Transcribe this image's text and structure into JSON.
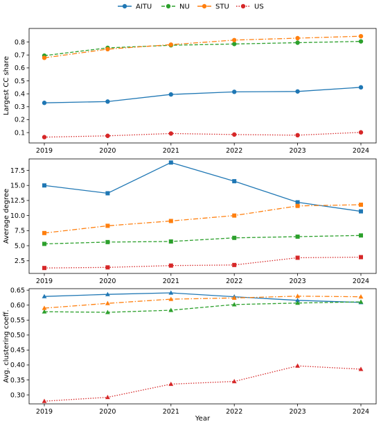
{
  "legend": {
    "placement": "top-center",
    "entries": [
      {
        "name": "AITU",
        "color": "#1f77b4",
        "dash": "solid"
      },
      {
        "name": "NU",
        "color": "#2ca02c",
        "dash": "dashed"
      },
      {
        "name": "STU",
        "color": "#ff7f0e",
        "dash": "dashdot"
      },
      {
        "name": "US",
        "color": "#d62728",
        "dash": "dotted"
      }
    ]
  },
  "chart_data": [
    {
      "type": "line",
      "ylabel": "Largest CC share",
      "xlabel": "",
      "marker": "circle",
      "x": [
        2019,
        2020,
        2021,
        2022,
        2023,
        2024
      ],
      "x_ticks": [
        "2019",
        "2020",
        "2021",
        "2022",
        "2023",
        "2024"
      ],
      "ylim": [
        0.02,
        0.905
      ],
      "y_ticks": [
        "0.1",
        "0.2",
        "0.3",
        "0.4",
        "0.5",
        "0.6",
        "0.7",
        "0.8"
      ],
      "y_tick_values": [
        0.1,
        0.2,
        0.3,
        0.4,
        0.5,
        0.6,
        0.7,
        0.8
      ],
      "grid": false,
      "series": [
        {
          "name": "AITU",
          "values": [
            0.33,
            0.34,
            0.395,
            0.415,
            0.418,
            0.45
          ]
        },
        {
          "name": "NU",
          "values": [
            0.695,
            0.755,
            0.775,
            0.785,
            0.795,
            0.805
          ]
        },
        {
          "name": "STU",
          "values": [
            0.678,
            0.745,
            0.78,
            0.815,
            0.83,
            0.845
          ]
        },
        {
          "name": "US",
          "values": [
            0.065,
            0.075,
            0.093,
            0.085,
            0.08,
            0.102
          ]
        }
      ]
    },
    {
      "type": "line",
      "ylabel": "Average degree",
      "xlabel": "",
      "marker": "square",
      "x": [
        2019,
        2020,
        2021,
        2022,
        2023,
        2024
      ],
      "x_ticks": [
        "2019",
        "2020",
        "2021",
        "2022",
        "2023",
        "2024"
      ],
      "ylim": [
        0.4,
        19.4
      ],
      "y_ticks": [
        "2.5",
        "5.0",
        "7.5",
        "10.0",
        "12.5",
        "15.0",
        "17.5"
      ],
      "y_tick_values": [
        2.5,
        5.0,
        7.5,
        10.0,
        12.5,
        15.0,
        17.5
      ],
      "grid": false,
      "series": [
        {
          "name": "AITU",
          "values": [
            15.0,
            13.7,
            18.8,
            15.7,
            12.2,
            10.7
          ]
        },
        {
          "name": "NU",
          "values": [
            5.3,
            5.6,
            5.7,
            6.3,
            6.5,
            6.7
          ]
        },
        {
          "name": "STU",
          "values": [
            7.1,
            8.3,
            9.1,
            10.0,
            11.6,
            11.8
          ]
        },
        {
          "name": "US",
          "values": [
            1.3,
            1.4,
            1.7,
            1.8,
            3.0,
            3.1
          ]
        }
      ]
    },
    {
      "type": "line",
      "ylabel": "Avg. clustering coeff.",
      "xlabel": "Year",
      "marker": "triangle",
      "x": [
        2019,
        2020,
        2021,
        2022,
        2023,
        2024
      ],
      "x_ticks": [
        "2019",
        "2020",
        "2021",
        "2022",
        "2023",
        "2024"
      ],
      "ylim": [
        0.27,
        0.655
      ],
      "y_ticks": [
        "0.30",
        "0.35",
        "0.40",
        "0.45",
        "0.50",
        "0.55",
        "0.60",
        "0.65"
      ],
      "y_tick_values": [
        0.3,
        0.35,
        0.4,
        0.45,
        0.5,
        0.55,
        0.6,
        0.65
      ],
      "grid": false,
      "series": [
        {
          "name": "AITU",
          "values": [
            0.629,
            0.636,
            0.641,
            0.628,
            0.616,
            0.609
          ]
        },
        {
          "name": "NU",
          "values": [
            0.578,
            0.576,
            0.583,
            0.602,
            0.607,
            0.611
          ]
        },
        {
          "name": "STU",
          "values": [
            0.59,
            0.606,
            0.62,
            0.624,
            0.63,
            0.628
          ]
        },
        {
          "name": "US",
          "values": [
            0.279,
            0.292,
            0.336,
            0.345,
            0.397,
            0.386
          ]
        }
      ]
    }
  ]
}
